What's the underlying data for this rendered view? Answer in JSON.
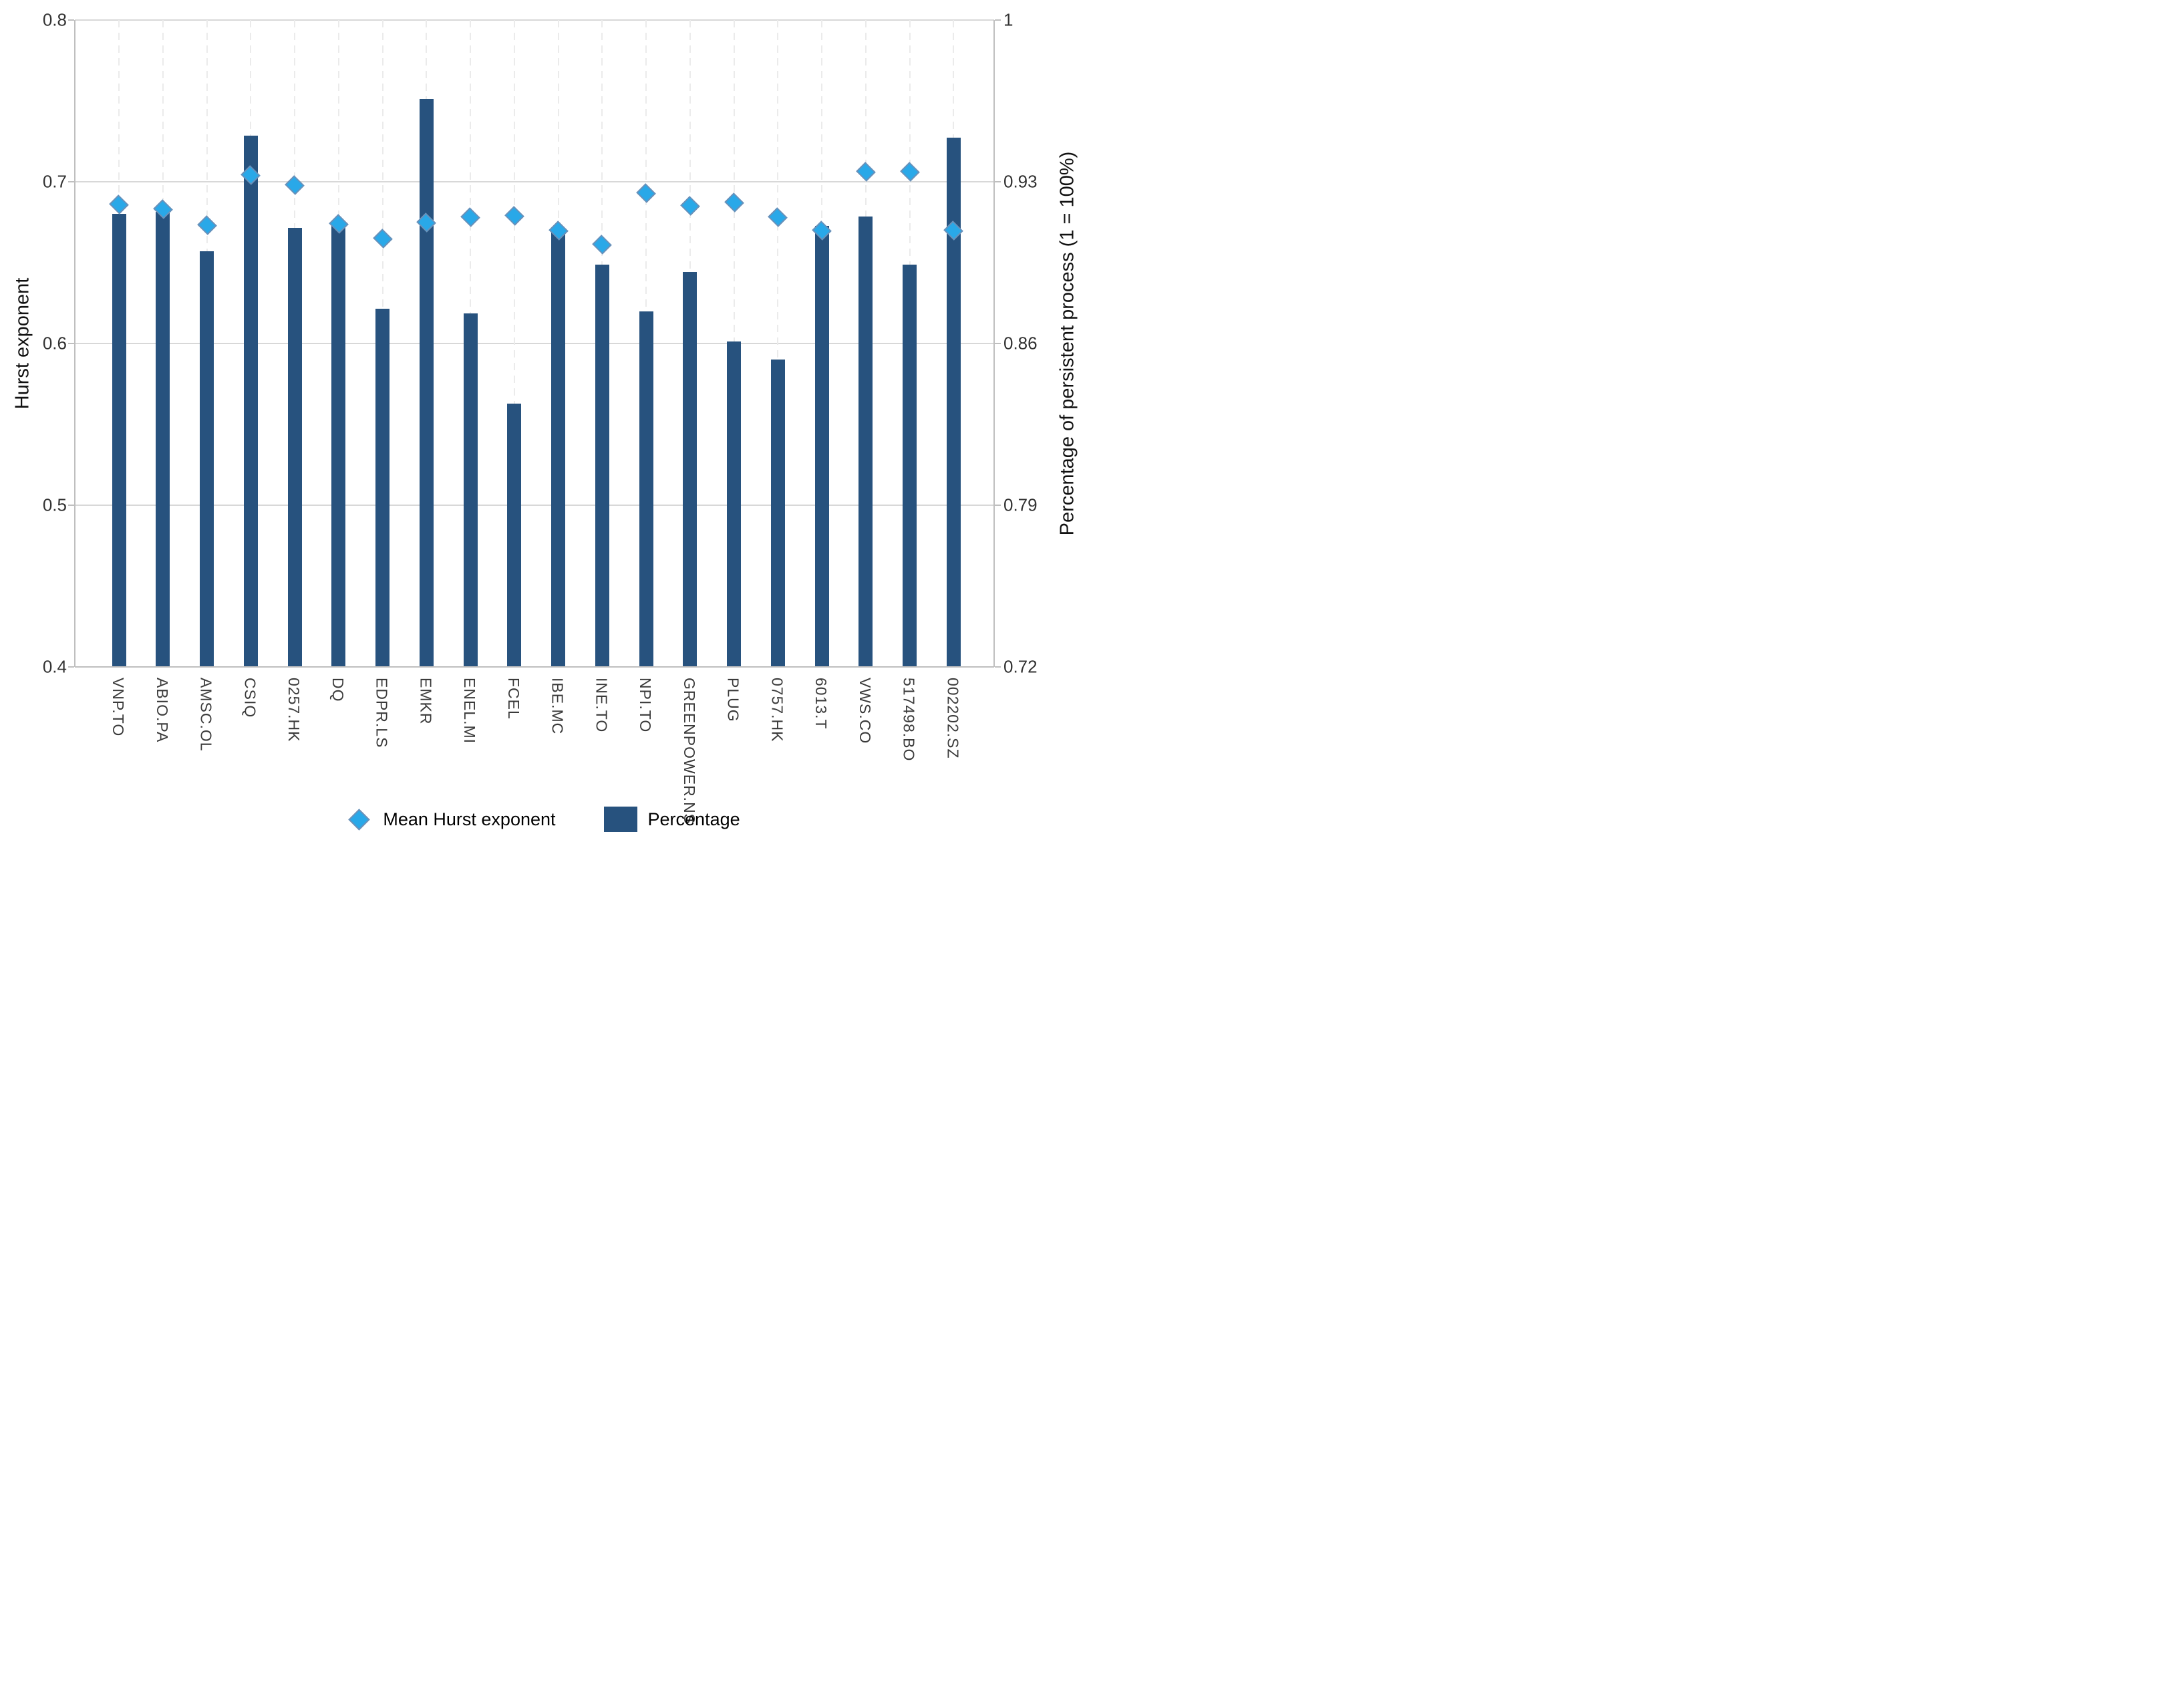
{
  "chart_data": {
    "type": "bar",
    "categories": [
      "VNP.TO",
      "ABIO.PA",
      "AMSC.OL",
      "CSIQ",
      "0257.HK",
      "DQ",
      "EDPR.LS",
      "EMKR",
      "ENEL.MI",
      "FCEL",
      "IBE.MC",
      "INE.TO",
      "NPI.TO",
      "GREENPOWER.NS",
      "PLUG",
      "0757.HK",
      "6013.T",
      "VWS.CO",
      "517498.BO",
      "002202.SZ"
    ],
    "series": [
      {
        "name": "Mean Hurst exponent",
        "type": "scatter",
        "marker": "diamond",
        "axis": "left",
        "values": [
          0.686,
          0.683,
          0.673,
          0.704,
          0.698,
          0.674,
          0.665,
          0.675,
          0.678,
          0.679,
          0.67,
          0.661,
          0.693,
          0.685,
          0.687,
          0.678,
          0.67,
          0.706,
          0.706,
          0.67
        ]
      },
      {
        "name": "Percentage",
        "type": "bar",
        "axis": "right",
        "values": [
          0.916,
          0.917,
          0.9,
          0.95,
          0.91,
          0.911,
          0.875,
          0.966,
          0.873,
          0.834,
          0.908,
          0.894,
          0.874,
          0.891,
          0.861,
          0.853,
          0.911,
          0.915,
          0.894,
          0.949
        ]
      }
    ],
    "left_axis": {
      "label": "Hurst exponent",
      "ticks": [
        "0.8",
        "0.7",
        "0.6",
        "0.5",
        "0.4"
      ],
      "tick_values": [
        0.8,
        0.7,
        0.6,
        0.5,
        0.4
      ],
      "range": [
        0.4,
        0.8
      ]
    },
    "right_axis": {
      "label": "Percentage of persistent process (1 = 100%)",
      "ticks": [
        "1",
        "0.93",
        "0.86",
        "0.79",
        "0.72"
      ],
      "tick_values": [
        1,
        0.93,
        0.86,
        0.79,
        0.72
      ],
      "range": [
        0.72,
        1.0
      ]
    },
    "legend": {
      "position": "bottom",
      "entries": [
        "Mean Hurst exponent",
        "Percentage"
      ]
    },
    "grid": {
      "horizontal": true,
      "vertical_dashed_per_category": true
    },
    "colors": {
      "bar": "#27527E",
      "diamond": "#29A8E8",
      "gridline": "#D8D8D8",
      "axis_line": "#BFBFBF",
      "dashed_category_line": "#EBEBEB"
    }
  }
}
